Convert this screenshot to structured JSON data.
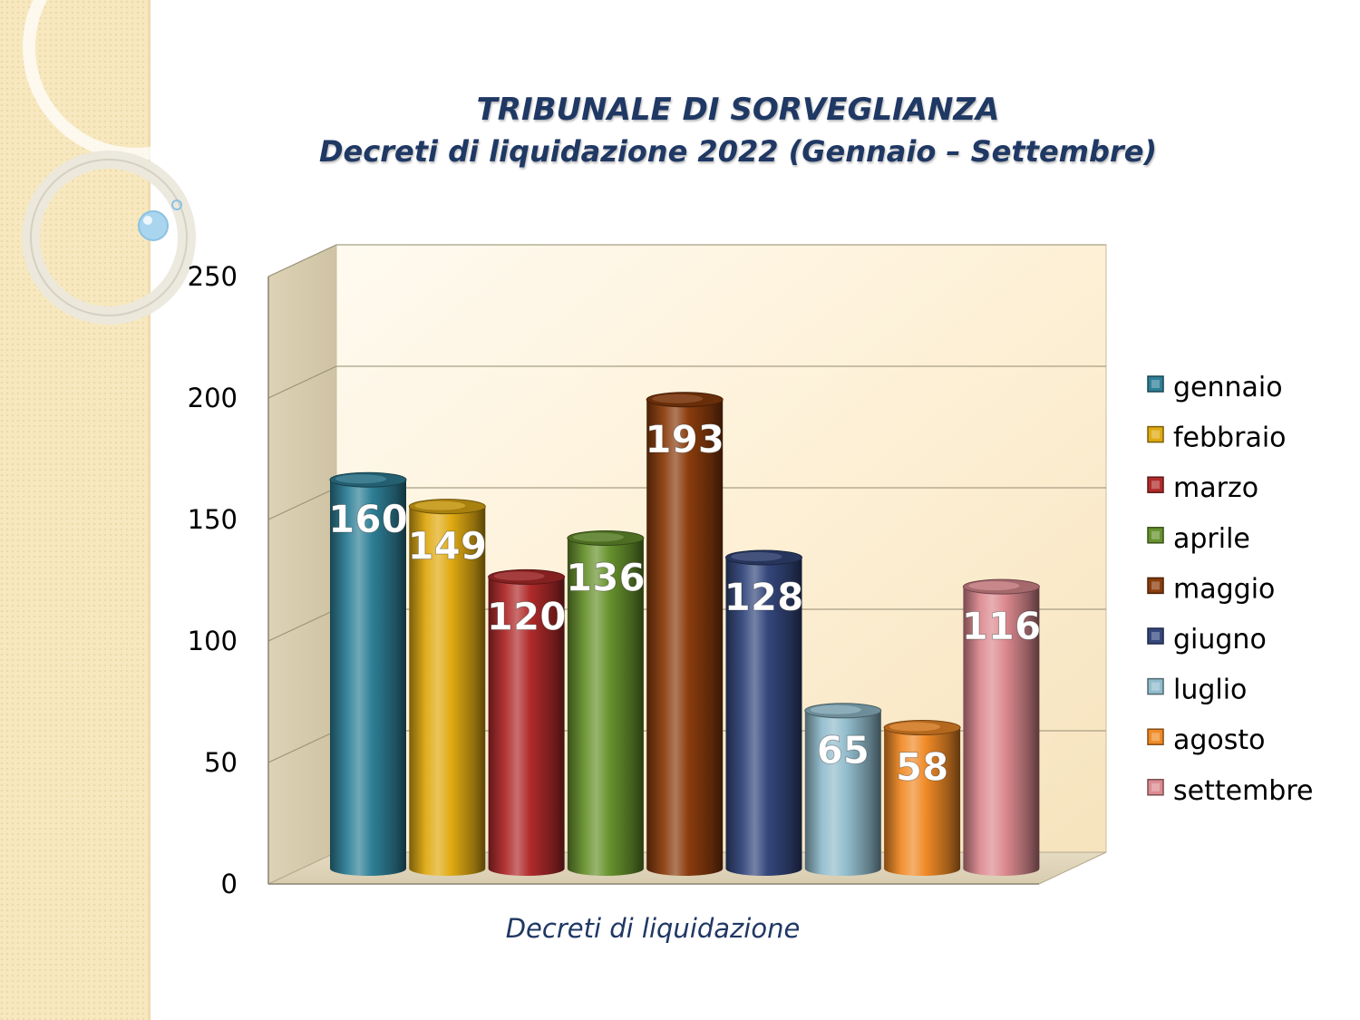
{
  "title": "TRIBUNALE DI SORVEGLIANZA",
  "subtitle": "Decreti di liquidazione 2022 (Gennaio – Settembre)",
  "chart_data": {
    "type": "bar",
    "style": "3d-cylinder",
    "categories": [
      "Decreti di liquidazione"
    ],
    "xlabel": "Decreti di liquidazione",
    "ylabel": "",
    "ylim": [
      0,
      250
    ],
    "y_ticks": [
      0,
      50,
      100,
      150,
      200,
      250
    ],
    "grid": true,
    "legend_position": "right",
    "data_labels": true,
    "series": [
      {
        "name": "gennaio",
        "values": [
          160
        ],
        "color": "#2e7f96"
      },
      {
        "name": "febbraio",
        "values": [
          149
        ],
        "color": "#e0aa12"
      },
      {
        "name": "marzo",
        "values": [
          120
        ],
        "color": "#b02a2a"
      },
      {
        "name": "aprile",
        "values": [
          136
        ],
        "color": "#67922d"
      },
      {
        "name": "maggio",
        "values": [
          193
        ],
        "color": "#8a3c0c"
      },
      {
        "name": "giugno",
        "values": [
          128
        ],
        "color": "#34477c"
      },
      {
        "name": "luglio",
        "values": [
          65
        ],
        "color": "#91bccc"
      },
      {
        "name": "agosto",
        "values": [
          58
        ],
        "color": "#f08a26"
      },
      {
        "name": "settembre",
        "values": [
          116
        ],
        "color": "#dc8a90"
      }
    ]
  }
}
